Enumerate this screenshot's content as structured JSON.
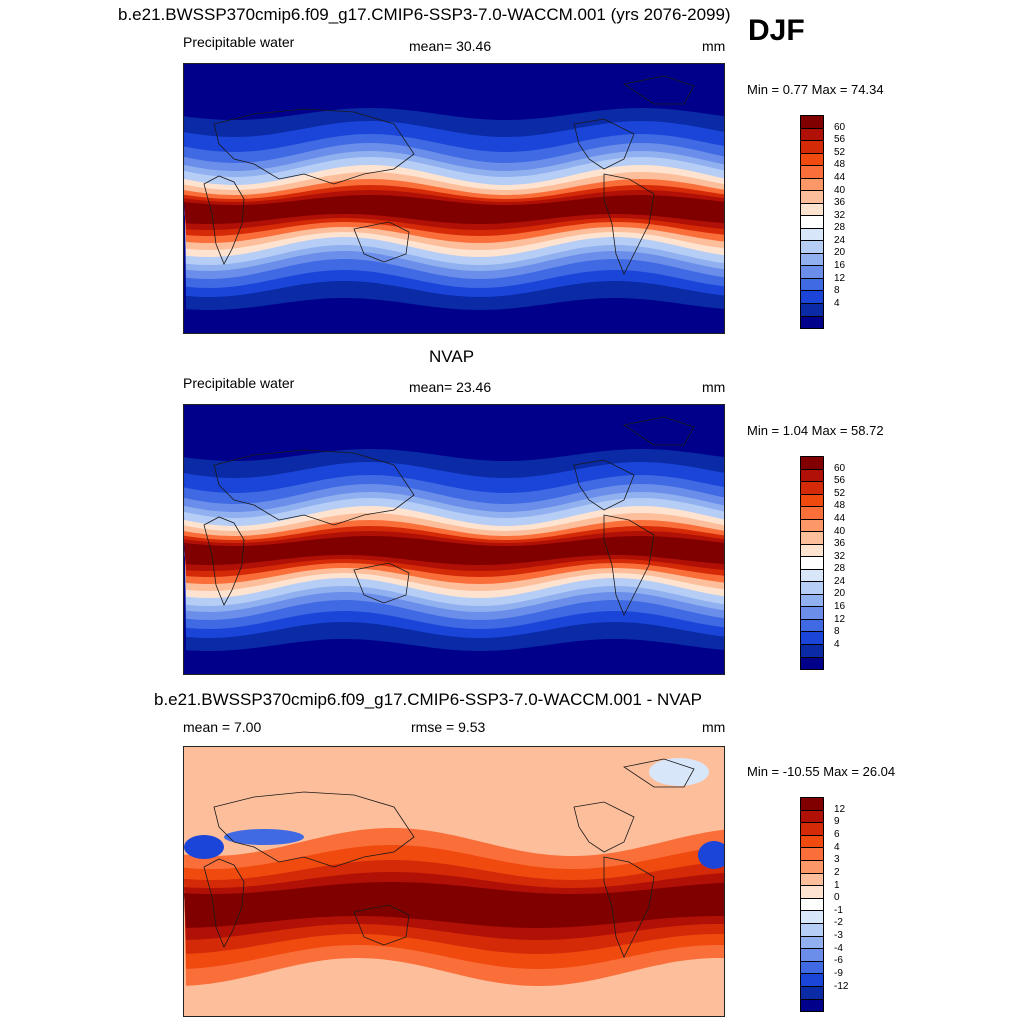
{
  "header": {
    "title": "b.e21.BWSSP370cmip6.f09_g17.CMIP6-SSP3-7.0-WACCM.001 (yrs 2076-2099)",
    "season": "DJF"
  },
  "panels": [
    {
      "field_label": "Precipitable water",
      "stat_text": "mean=  30.46",
      "units": "mm",
      "minmax_text": "Min =   0.77 Max =  74.34",
      "colorbar": {
        "labels": [
          "60",
          "56",
          "52",
          "48",
          "44",
          "40",
          "36",
          "32",
          "28",
          "24",
          "20",
          "16",
          "12",
          "8",
          "4"
        ],
        "colors": [
          "#800000",
          "#b01005",
          "#d52a08",
          "#f04a0e",
          "#fa6e3a",
          "#fc9768",
          "#fdbe9b",
          "#fee4d0",
          "#ffffff",
          "#d8e6fa",
          "#b6cdf6",
          "#90b0f0",
          "#6a8eea",
          "#3f6ae3",
          "#1a45d8",
          "#0a2aa6",
          "#00008b"
        ]
      },
      "map_palette": "pw"
    },
    {
      "panel_title": "NVAP",
      "field_label": "Precipitable water",
      "stat_text": "mean=  23.46",
      "units": "mm",
      "minmax_text": "Min =   1.04 Max =  58.72",
      "colorbar": {
        "labels": [
          "60",
          "56",
          "52",
          "48",
          "44",
          "40",
          "36",
          "32",
          "28",
          "24",
          "20",
          "16",
          "12",
          "8",
          "4"
        ],
        "colors": [
          "#800000",
          "#b01005",
          "#d52a08",
          "#f04a0e",
          "#fa6e3a",
          "#fc9768",
          "#fdbe9b",
          "#fee4d0",
          "#ffffff",
          "#d8e6fa",
          "#b6cdf6",
          "#90b0f0",
          "#6a8eea",
          "#3f6ae3",
          "#1a45d8",
          "#0a2aa6",
          "#00008b"
        ]
      },
      "map_palette": "pw"
    },
    {
      "panel_title": "b.e21.BWSSP370cmip6.f09_g17.CMIP6-SSP3-7.0-WACCM.001 - NVAP",
      "field_label": "mean =   7.00",
      "stat_text": "rmse =    9.53",
      "units": "mm",
      "minmax_text": "Min = -10.55 Max =  26.04",
      "colorbar": {
        "labels": [
          "12",
          "9",
          "6",
          "4",
          "3",
          "2",
          "1",
          "0",
          "-1",
          "-2",
          "-3",
          "-4",
          "-6",
          "-9",
          "-12"
        ],
        "colors": [
          "#800000",
          "#b01005",
          "#d52a08",
          "#f04a0e",
          "#fa6e3a",
          "#fc9768",
          "#fdbe9b",
          "#fee4d0",
          "#ffffff",
          "#d8e6fa",
          "#b6cdf6",
          "#90b0f0",
          "#6a8eea",
          "#3f6ae3",
          "#1a45d8",
          "#0a2aa6",
          "#00008b"
        ]
      },
      "map_palette": "diff"
    }
  ]
}
